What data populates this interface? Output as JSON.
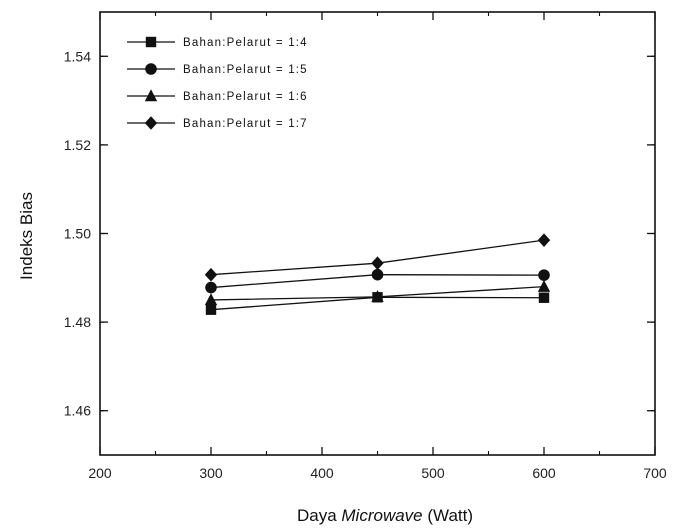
{
  "chart_data": {
    "type": "line",
    "xlabel_prefix": "Daya ",
    "xlabel_italic": "Microwave",
    "xlabel_suffix": " (Watt)",
    "ylabel": "Indeks Bias",
    "xlim": [
      200,
      700
    ],
    "ylim": [
      1.45,
      1.55
    ],
    "x_ticks": [
      200,
      300,
      400,
      500,
      600,
      700
    ],
    "y_ticks": [
      1.46,
      1.48,
      1.5,
      1.52,
      1.54
    ],
    "y_tick_labels": [
      "1.46",
      "1.48",
      "1.50",
      "1.52",
      "1.54"
    ],
    "grid": false,
    "legend_position": "top-left",
    "x": [
      300,
      450,
      600
    ],
    "series": [
      {
        "name": "Bahan:Pelarut = 1:4",
        "marker": "square",
        "values": [
          1.4828,
          1.4856,
          1.4855
        ]
      },
      {
        "name": "Bahan:Pelarut = 1:5",
        "marker": "circle",
        "values": [
          1.4878,
          1.4907,
          1.4906
        ]
      },
      {
        "name": "Bahan:Pelarut = 1:6",
        "marker": "triangle",
        "values": [
          1.485,
          1.4857,
          1.488
        ]
      },
      {
        "name": "Bahan:Pelarut = 1:7",
        "marker": "diamond",
        "values": [
          1.4907,
          1.4933,
          1.4985
        ]
      }
    ]
  }
}
